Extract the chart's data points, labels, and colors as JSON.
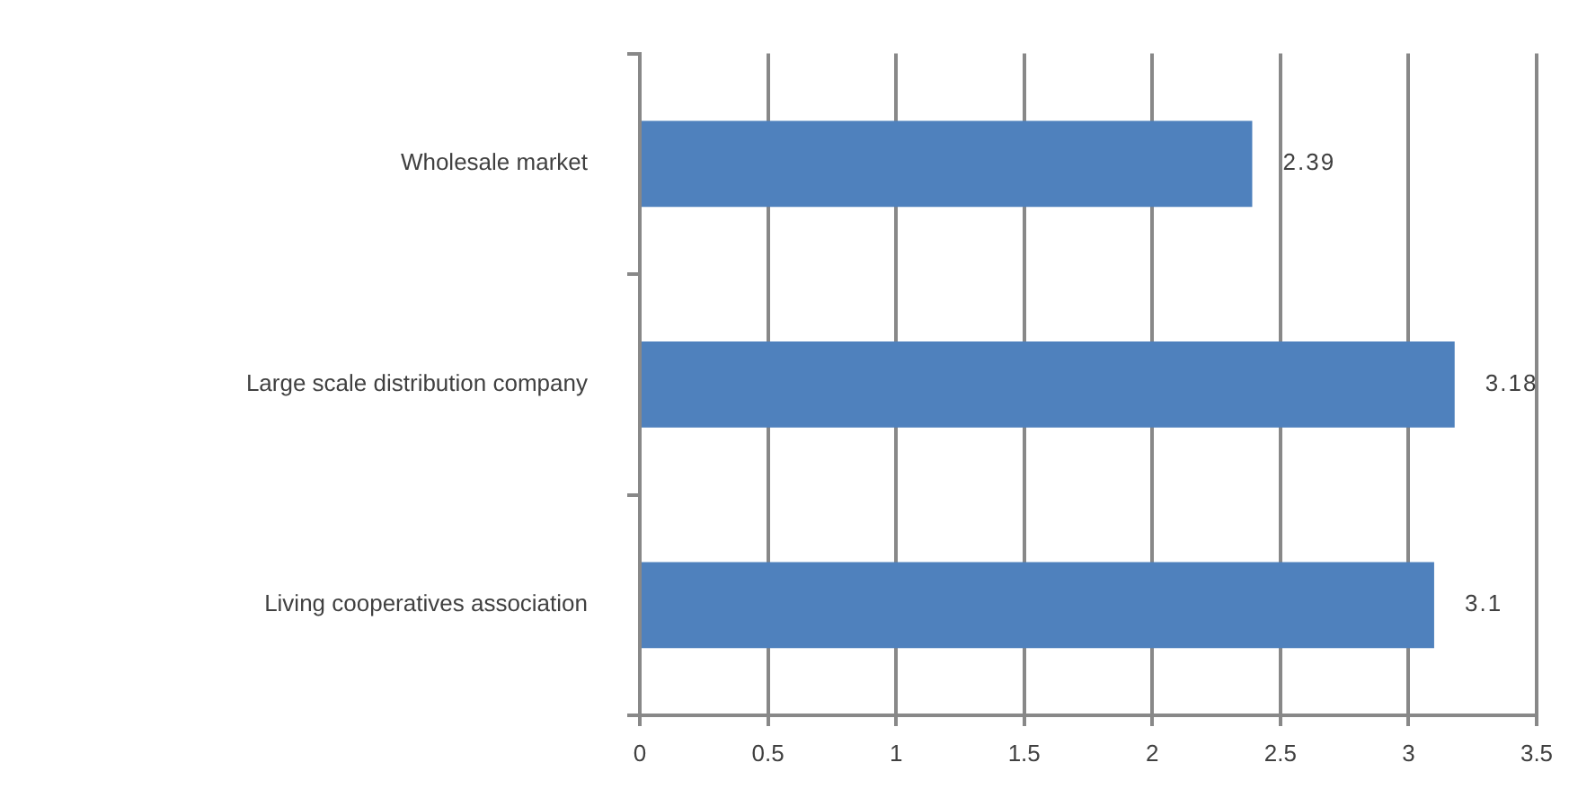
{
  "chart_data": {
    "type": "bar",
    "orientation": "horizontal",
    "categories": [
      "Wholesale market",
      "Large scale distribution company",
      "Living cooperatives association"
    ],
    "values": [
      2.39,
      3.18,
      3.1
    ],
    "color": "#4f81bd",
    "xlim": [
      0,
      3.5
    ],
    "xticks": [
      0,
      0.5,
      1,
      1.5,
      2,
      2.5,
      3,
      3.5
    ],
    "grid": "x",
    "data_labels": true
  }
}
